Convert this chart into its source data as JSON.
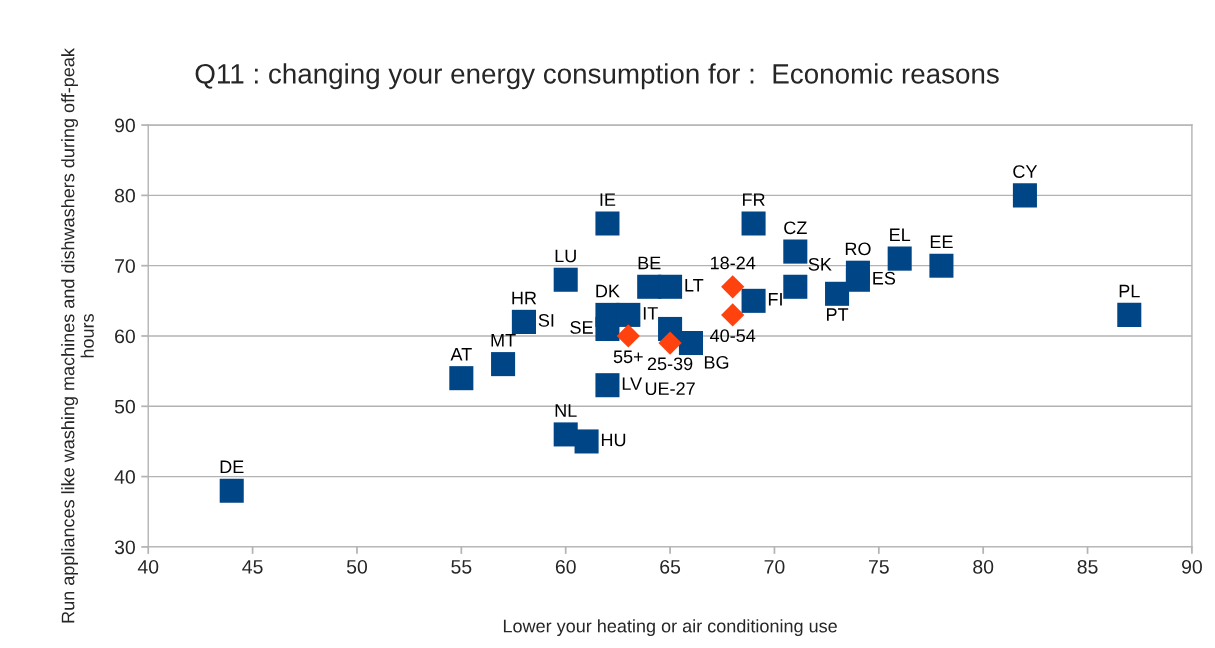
{
  "chart_data": {
    "type": "scatter",
    "title": "Q11 : changing your energy consumption for :  Economic reasons",
    "xlabel": "Lower your heating or air conditioning use",
    "ylabel": "Run appliances like washing machines and dishwashers during off-peak hours",
    "xlim": [
      40,
      90
    ],
    "xticks": [
      40,
      45,
      50,
      55,
      60,
      65,
      70,
      75,
      80,
      85,
      90
    ],
    "ylim": [
      30,
      90
    ],
    "yticks": [
      30,
      40,
      50,
      60,
      70,
      80,
      90
    ],
    "grid": "y",
    "legend": false,
    "series": [
      {
        "color": "#004586",
        "marker": "square",
        "x": [
          44,
          55,
          57,
          58,
          58,
          60,
          62,
          60,
          61,
          62,
          62,
          62,
          63,
          64,
          65,
          65,
          66,
          69,
          69,
          71,
          71,
          73,
          74,
          74,
          76,
          78,
          82,
          87
        ],
        "values": [
          38,
          54,
          56,
          62,
          62,
          68,
          76,
          46,
          45,
          53,
          63,
          61,
          63,
          67,
          67,
          61,
          59,
          76,
          65,
          72,
          67,
          66,
          69,
          68,
          71,
          70,
          80,
          63
        ],
        "value_labels": [
          "DE",
          "AT",
          "MT",
          "HR",
          "SI",
          "LU",
          "IE",
          "NL",
          "HU",
          "LV",
          "DK",
          "SE",
          "IT",
          "BE",
          "LT",
          "UE-27",
          "BG",
          "FR",
          "FI",
          "CZ",
          "SK",
          "PT",
          "RO",
          "ES",
          "EL",
          "EE",
          "CY",
          "PL"
        ]
      },
      {
        "color": "#ff420e",
        "marker": "diamond",
        "x": [
          68,
          65,
          68,
          63
        ],
        "values": [
          67,
          59,
          63,
          60
        ],
        "value_labels": [
          "18-24",
          "25-39",
          "40-54",
          "55+"
        ]
      }
    ]
  }
}
